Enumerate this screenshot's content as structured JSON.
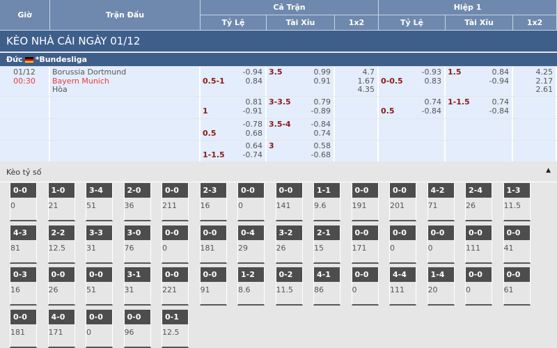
{
  "header": {
    "gio": "Giờ",
    "tran_dau": "Trận Đấu",
    "ca_tran": "Cả Trận",
    "hiep1": "Hiệp 1",
    "ty_le": "Tỷ Lệ",
    "tai_xiu": "Tài Xỉu",
    "x12": "1x2"
  },
  "title": "KÈO NHÀ CÁI NGÀY 01/12",
  "league": {
    "country": "Đức",
    "name": "*Bundesliga"
  },
  "match": {
    "date": "01/12",
    "time": "00:30",
    "home": "Borussia Dortmund",
    "away": "Bayern Munich",
    "draw": "Hòa"
  },
  "rows": [
    {
      "hcap": "0.5-1",
      "h1": "-0.94",
      "h2": "0.84",
      "ou": "3.5",
      "o1": "0.99",
      "o2": "0.91",
      "x1": "4.7",
      "x2": "1.67",
      "x3": "4.35",
      "fh_hcap": "0-0.5",
      "fh1": "-0.93",
      "fh2": "0.83",
      "fh_ou": "1.5",
      "fo1": "0.84",
      "fo2": "-0.94",
      "fx1": "4.25",
      "fx2": "2.17",
      "fx3": "2.61"
    },
    {
      "hcap": "1",
      "h1": "0.81",
      "h2": "-0.91",
      "ou": "3-3.5",
      "o1": "0.79",
      "o2": "-0.89",
      "fh_hcap": "0.5",
      "fh1": "0.74",
      "fh2": "-0.84",
      "fh_ou": "1-1.5",
      "fo1": "0.74",
      "fo2": "-0.84"
    },
    {
      "hcap": "0.5",
      "h1": "-0.78",
      "h2": "0.68",
      "ou": "3.5-4",
      "o1": "-0.84",
      "o2": "0.74"
    },
    {
      "hcap": "1-1.5",
      "h1": "0.64",
      "h2": "-0.74",
      "ou": "3",
      "o1": "0.58",
      "o2": "-0.68"
    }
  ],
  "correct_score": {
    "label": "Kèo tỷ số",
    "collapse_icon": "caret-up-icon",
    "tiles": [
      [
        "0-0",
        "0"
      ],
      [
        "1-0",
        "21"
      ],
      [
        "3-4",
        "51"
      ],
      [
        "2-0",
        "36"
      ],
      [
        "0-0",
        "211"
      ],
      [
        "2-3",
        "16"
      ],
      [
        "0-0",
        "0"
      ],
      [
        "0-0",
        "141"
      ],
      [
        "1-1",
        "9.6"
      ],
      [
        "0-0",
        "191"
      ],
      [
        "0-0",
        "201"
      ],
      [
        "4-2",
        "71"
      ],
      [
        "2-4",
        "26"
      ],
      [
        "1-3",
        "11.5"
      ],
      [
        "4-3",
        "81"
      ],
      [
        "2-2",
        "12.5"
      ],
      [
        "3-3",
        "31"
      ],
      [
        "3-0",
        "76"
      ],
      [
        "0-0",
        "0"
      ],
      [
        "0-0",
        "181"
      ],
      [
        "0-4",
        "29"
      ],
      [
        "3-2",
        "26"
      ],
      [
        "2-1",
        "15"
      ],
      [
        "0-0",
        "171"
      ],
      [
        "0-0",
        "0"
      ],
      [
        "0-0",
        "0"
      ],
      [
        "0-0",
        "111"
      ],
      [
        "0-0",
        "41"
      ],
      [
        "0-3",
        "16"
      ],
      [
        "0-0",
        "26"
      ],
      [
        "0-0",
        "51"
      ],
      [
        "3-1",
        "31"
      ],
      [
        "0-0",
        "221"
      ],
      [
        "0-0",
        "91"
      ],
      [
        "1-2",
        "8.6"
      ],
      [
        "0-2",
        "11.5"
      ],
      [
        "4-1",
        "86"
      ],
      [
        "0-0",
        "0"
      ],
      [
        "4-4",
        "111"
      ],
      [
        "1-4",
        "20"
      ],
      [
        "0-0",
        "0"
      ],
      [
        "0-0",
        "61"
      ],
      [
        "0-0",
        "181"
      ],
      [
        "4-0",
        "171"
      ],
      [
        "0-0",
        "0"
      ],
      [
        "0-0",
        "96"
      ],
      [
        "0-1",
        "12.5"
      ]
    ]
  }
}
